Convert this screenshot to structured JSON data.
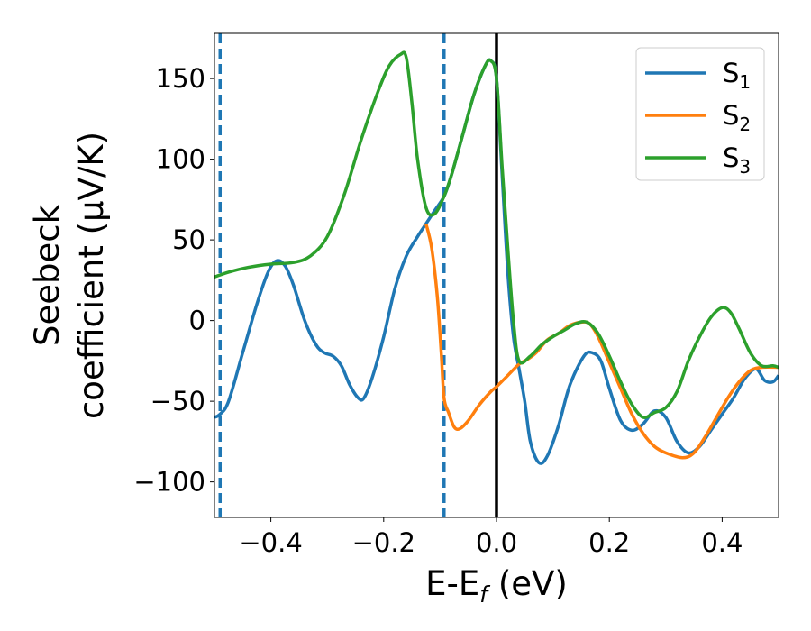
{
  "chart_data": {
    "type": "line",
    "xlabel": "E-E_f (eV)",
    "xlabel_parts": {
      "main": "E-E",
      "sub": "f",
      "tail": " (eV)"
    },
    "ylabel_line1": "Seebeck",
    "ylabel_line2": "coefficient  (μV/K)",
    "xlim": [
      -0.5,
      0.5
    ],
    "ylim": [
      -122,
      178
    ],
    "xticks": [
      -0.4,
      -0.2,
      0.0,
      0.2,
      0.4
    ],
    "xtick_labels": [
      "−0.4",
      "−0.2",
      "0.0",
      "0.2",
      "0.4"
    ],
    "yticks": [
      -100,
      -50,
      0,
      50,
      100,
      150
    ],
    "ytick_labels": [
      "−100",
      "−50",
      "0",
      "50",
      "100",
      "150"
    ],
    "grid": false,
    "legend_position": "top-right",
    "vlines": [
      {
        "x": -0.49,
        "style": "dashed",
        "color": "#1f77b4"
      },
      {
        "x": -0.093,
        "style": "dashed",
        "color": "#1f77b4"
      },
      {
        "x": 0.0,
        "style": "solid",
        "color": "#000000"
      }
    ],
    "series": [
      {
        "name": "S1",
        "name_main": "S",
        "name_sub": "1",
        "color": "#1f77b4",
        "points": [
          [
            -0.5,
            -60
          ],
          [
            -0.49,
            -58
          ],
          [
            -0.475,
            -50
          ],
          [
            -0.45,
            -20
          ],
          [
            -0.425,
            10
          ],
          [
            -0.405,
            30
          ],
          [
            -0.39,
            37
          ],
          [
            -0.375,
            34
          ],
          [
            -0.36,
            22
          ],
          [
            -0.34,
            0
          ],
          [
            -0.32,
            -15
          ],
          [
            -0.305,
            -20
          ],
          [
            -0.29,
            -22
          ],
          [
            -0.275,
            -28
          ],
          [
            -0.26,
            -40
          ],
          [
            -0.245,
            -48
          ],
          [
            -0.235,
            -48
          ],
          [
            -0.22,
            -35
          ],
          [
            -0.2,
            -10
          ],
          [
            -0.18,
            20
          ],
          [
            -0.16,
            40
          ],
          [
            -0.14,
            52
          ],
          [
            -0.125,
            60
          ],
          [
            -0.11,
            68
          ],
          [
            -0.093,
            77
          ],
          [
            -0.08,
            90
          ],
          [
            -0.06,
            115
          ],
          [
            -0.04,
            140
          ],
          [
            -0.02,
            158
          ],
          [
            -0.01,
            161
          ],
          [
            0.0,
            150
          ],
          [
            0.01,
            90
          ],
          [
            0.02,
            30
          ],
          [
            0.03,
            -10
          ],
          [
            0.04,
            -30
          ],
          [
            0.05,
            -50
          ],
          [
            0.06,
            -75
          ],
          [
            0.075,
            -88
          ],
          [
            0.09,
            -84
          ],
          [
            0.11,
            -65
          ],
          [
            0.13,
            -40
          ],
          [
            0.155,
            -22
          ],
          [
            0.17,
            -20
          ],
          [
            0.185,
            -25
          ],
          [
            0.2,
            -42
          ],
          [
            0.22,
            -62
          ],
          [
            0.24,
            -68
          ],
          [
            0.26,
            -64
          ],
          [
            0.28,
            -56
          ],
          [
            0.3,
            -60
          ],
          [
            0.32,
            -75
          ],
          [
            0.34,
            -82
          ],
          [
            0.36,
            -78
          ],
          [
            0.38,
            -68
          ],
          [
            0.4,
            -58
          ],
          [
            0.42,
            -48
          ],
          [
            0.44,
            -36
          ],
          [
            0.46,
            -30
          ],
          [
            0.475,
            -37
          ],
          [
            0.49,
            -38
          ],
          [
            0.5,
            -34
          ]
        ]
      },
      {
        "name": "S2",
        "name_main": "S",
        "name_sub": "2",
        "color": "#ff7f0e",
        "points": [
          [
            -0.125,
            60
          ],
          [
            -0.115,
            45
          ],
          [
            -0.105,
            15
          ],
          [
            -0.098,
            -20
          ],
          [
            -0.093,
            -48
          ],
          [
            -0.085,
            -57
          ],
          [
            -0.075,
            -66
          ],
          [
            -0.065,
            -67
          ],
          [
            -0.05,
            -62
          ],
          [
            -0.03,
            -52
          ],
          [
            -0.01,
            -44
          ],
          [
            0.0,
            -41
          ],
          [
            0.02,
            -34
          ],
          [
            0.04,
            -27
          ],
          [
            0.055,
            -24
          ],
          [
            0.07,
            -20
          ],
          [
            0.09,
            -12
          ],
          [
            0.11,
            -8
          ],
          [
            0.13,
            -3
          ],
          [
            0.15,
            -1
          ],
          [
            0.165,
            -2
          ],
          [
            0.18,
            -10
          ],
          [
            0.2,
            -26
          ],
          [
            0.22,
            -42
          ],
          [
            0.24,
            -58
          ],
          [
            0.26,
            -70
          ],
          [
            0.28,
            -78
          ],
          [
            0.3,
            -82
          ],
          [
            0.33,
            -85
          ],
          [
            0.35,
            -82
          ],
          [
            0.37,
            -72
          ],
          [
            0.39,
            -60
          ],
          [
            0.41,
            -48
          ],
          [
            0.43,
            -38
          ],
          [
            0.45,
            -31
          ],
          [
            0.47,
            -29
          ],
          [
            0.5,
            -29
          ]
        ]
      },
      {
        "name": "S3",
        "name_main": "S",
        "name_sub": "3",
        "color": "#2ca02c",
        "points": [
          [
            -0.5,
            27
          ],
          [
            -0.475,
            30
          ],
          [
            -0.44,
            33
          ],
          [
            -0.4,
            35
          ],
          [
            -0.36,
            36
          ],
          [
            -0.33,
            40
          ],
          [
            -0.3,
            52
          ],
          [
            -0.27,
            78
          ],
          [
            -0.24,
            112
          ],
          [
            -0.21,
            142
          ],
          [
            -0.19,
            158
          ],
          [
            -0.17,
            165
          ],
          [
            -0.16,
            163
          ],
          [
            -0.15,
            135
          ],
          [
            -0.14,
            100
          ],
          [
            -0.125,
            70
          ],
          [
            -0.11,
            66
          ],
          [
            -0.093,
            77
          ],
          [
            -0.08,
            90
          ],
          [
            -0.06,
            115
          ],
          [
            -0.04,
            140
          ],
          [
            -0.02,
            158
          ],
          [
            -0.01,
            161
          ],
          [
            0.0,
            150
          ],
          [
            0.01,
            95
          ],
          [
            0.02,
            45
          ],
          [
            0.03,
            0
          ],
          [
            0.04,
            -25
          ],
          [
            0.06,
            -22
          ],
          [
            0.08,
            -15
          ],
          [
            0.1,
            -10
          ],
          [
            0.12,
            -6
          ],
          [
            0.14,
            -2
          ],
          [
            0.16,
            -1
          ],
          [
            0.18,
            -8
          ],
          [
            0.2,
            -22
          ],
          [
            0.22,
            -38
          ],
          [
            0.24,
            -52
          ],
          [
            0.26,
            -60
          ],
          [
            0.28,
            -57
          ],
          [
            0.3,
            -54
          ],
          [
            0.32,
            -44
          ],
          [
            0.34,
            -25
          ],
          [
            0.36,
            -10
          ],
          [
            0.38,
            2
          ],
          [
            0.4,
            8
          ],
          [
            0.415,
            5
          ],
          [
            0.43,
            -5
          ],
          [
            0.45,
            -20
          ],
          [
            0.47,
            -28
          ],
          [
            0.49,
            -28
          ],
          [
            0.5,
            -29
          ]
        ]
      }
    ]
  }
}
